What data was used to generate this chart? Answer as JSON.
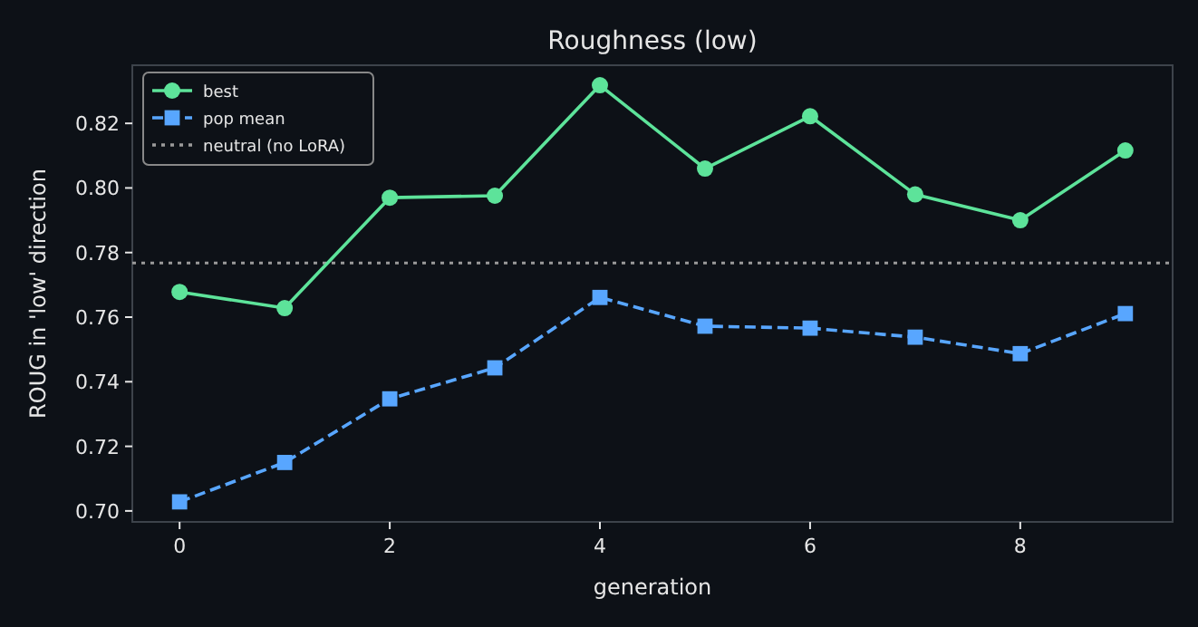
{
  "chart_data": {
    "type": "line",
    "title": "Roughness (low)",
    "xlabel": "generation",
    "ylabel": "ROUG in 'low' direction",
    "x": [
      0,
      1,
      2,
      3,
      4,
      5,
      6,
      7,
      8,
      9
    ],
    "series": [
      {
        "name": "best",
        "color": "#5de39a",
        "marker": "circle",
        "line_style": "solid",
        "values": [
          0.7678,
          0.7628,
          0.797,
          0.7976,
          0.8318,
          0.806,
          0.8222,
          0.798,
          0.79,
          0.8116
        ]
      },
      {
        "name": "pop mean",
        "color": "#58a6ff",
        "marker": "square",
        "line_style": "dashed",
        "values": [
          0.7028,
          0.715,
          0.7347,
          0.7443,
          0.7661,
          0.7572,
          0.7566,
          0.7538,
          0.7487,
          0.7611
        ]
      }
    ],
    "ref_lines": [
      {
        "axis": "y",
        "value": 0.7768,
        "label": "neutral (no LoRA)",
        "color": "#9a9a9a",
        "line_style": "dotted"
      }
    ],
    "xlim": [
      -0.45,
      9.45
    ],
    "xticks": [
      0,
      2,
      4,
      6,
      8
    ],
    "ylim": [
      0.6966,
      0.838
    ],
    "yticks": [
      {
        "value": 0.7,
        "label": "0.70"
      },
      0.72,
      0.74,
      0.76,
      0.78,
      {
        "value": 0.8,
        "label": "0.80"
      },
      0.82
    ],
    "grid": false,
    "legend": "top left"
  }
}
